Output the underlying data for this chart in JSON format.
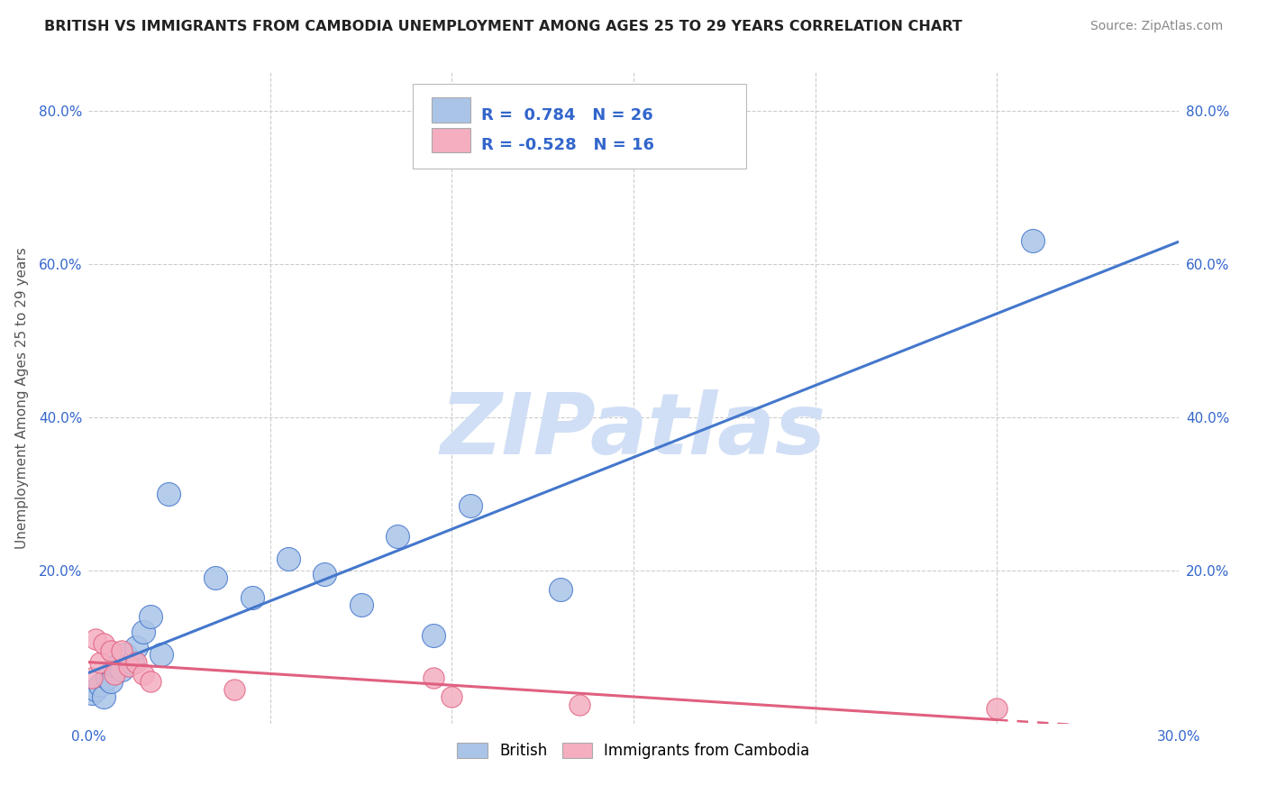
{
  "title": "BRITISH VS IMMIGRANTS FROM CAMBODIA UNEMPLOYMENT AMONG AGES 25 TO 29 YEARS CORRELATION CHART",
  "source": "Source: ZipAtlas.com",
  "ylabel": "Unemployment Among Ages 25 to 29 years",
  "xlim": [
    0.0,
    0.3
  ],
  "ylim": [
    0.0,
    0.85
  ],
  "british_color": "#aac4e8",
  "cambodia_color": "#f4aec0",
  "british_line_color": "#4477cc",
  "cambodia_line_color": "#e06080",
  "watermark_text": "ZIPatlas",
  "watermark_color": "#d0dff5",
  "legend_british_R": "0.784",
  "legend_british_N": "26",
  "legend_cambodia_R": "-0.528",
  "legend_cambodia_N": "16",
  "legend_text_color": "#3366cc",
  "legend_label_color": "#333333",
  "british_x": [
    0.001,
    0.002,
    0.003,
    0.004,
    0.005,
    0.006,
    0.007,
    0.008,
    0.009,
    0.01,
    0.012,
    0.013,
    0.015,
    0.017,
    0.02,
    0.022,
    0.035,
    0.045,
    0.055,
    0.065,
    0.075,
    0.085,
    0.095,
    0.105,
    0.13,
    0.26
  ],
  "british_y": [
    0.04,
    0.045,
    0.05,
    0.035,
    0.06,
    0.055,
    0.075,
    0.075,
    0.07,
    0.09,
    0.08,
    0.1,
    0.12,
    0.14,
    0.09,
    0.3,
    0.19,
    0.165,
    0.215,
    0.195,
    0.155,
    0.245,
    0.115,
    0.285,
    0.175,
    0.63
  ],
  "cambodia_x": [
    0.001,
    0.002,
    0.003,
    0.004,
    0.006,
    0.007,
    0.009,
    0.011,
    0.013,
    0.015,
    0.017,
    0.04,
    0.095,
    0.1,
    0.135,
    0.25
  ],
  "cambodia_y": [
    0.06,
    0.11,
    0.08,
    0.105,
    0.095,
    0.065,
    0.095,
    0.075,
    0.08,
    0.065,
    0.055,
    0.045,
    0.06,
    0.035,
    0.025,
    0.02
  ],
  "title_fontsize": 11.5,
  "source_fontsize": 10,
  "axis_label_fontsize": 11,
  "tick_fontsize": 11,
  "legend_fontsize": 13
}
